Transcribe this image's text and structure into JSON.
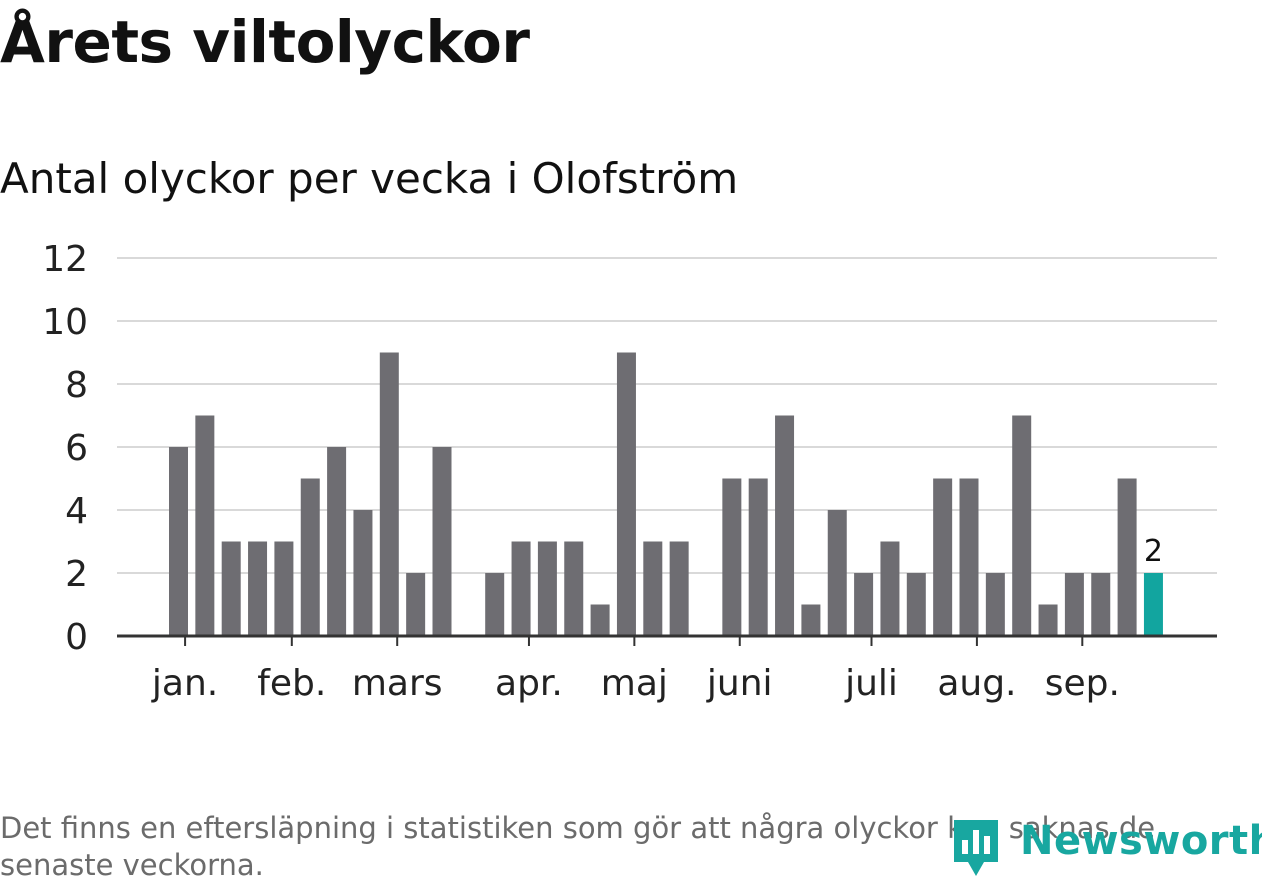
{
  "title": "Årets viltolyckor",
  "subtitle": "Antal olyckor per vecka i Olofström",
  "footnote": "Det finns en eftersläpning i statistiken som gör att några olyckor kan saknas de senaste veckorna.",
  "brand": {
    "name": "Newsworthy",
    "icon": "newsworthy-logo-icon"
  },
  "colors": {
    "bar": "#6e6d72",
    "highlight": "#12a59f",
    "grid": "#d9d9d9",
    "axis": "#333333",
    "text": "#222222"
  },
  "chart_data": {
    "type": "bar",
    "title": "Antal olyckor per vecka i Olofström",
    "xlabel": "",
    "ylabel": "",
    "ylim": [
      0,
      12
    ],
    "yticks": [
      0,
      2,
      4,
      6,
      8,
      10,
      12
    ],
    "grid": true,
    "week_slots": 40,
    "weeks": [
      {
        "week": 3,
        "value": 6
      },
      {
        "week": 4,
        "value": 7
      },
      {
        "week": 5,
        "value": 3
      },
      {
        "week": 6,
        "value": 3
      },
      {
        "week": 7,
        "value": 3
      },
      {
        "week": 8,
        "value": 5
      },
      {
        "week": 9,
        "value": 6
      },
      {
        "week": 10,
        "value": 4
      },
      {
        "week": 11,
        "value": 9
      },
      {
        "week": 12,
        "value": 2
      },
      {
        "week": 13,
        "value": 6
      },
      {
        "week": 14,
        "value": 0
      },
      {
        "week": 15,
        "value": 2
      },
      {
        "week": 16,
        "value": 3
      },
      {
        "week": 17,
        "value": 3
      },
      {
        "week": 18,
        "value": 3
      },
      {
        "week": 19,
        "value": 1
      },
      {
        "week": 20,
        "value": 9
      },
      {
        "week": 21,
        "value": 3
      },
      {
        "week": 22,
        "value": 3
      },
      {
        "week": 23,
        "value": 0
      },
      {
        "week": 24,
        "value": 5
      },
      {
        "week": 25,
        "value": 5
      },
      {
        "week": 26,
        "value": 7
      },
      {
        "week": 27,
        "value": 1
      },
      {
        "week": 28,
        "value": 4
      },
      {
        "week": 29,
        "value": 2
      },
      {
        "week": 30,
        "value": 3
      },
      {
        "week": 31,
        "value": 2
      },
      {
        "week": 32,
        "value": 5
      },
      {
        "week": 33,
        "value": 5
      },
      {
        "week": 34,
        "value": 2
      },
      {
        "week": 35,
        "value": 7
      },
      {
        "week": 36,
        "value": 1
      },
      {
        "week": 37,
        "value": 2
      },
      {
        "week": 38,
        "value": 2
      },
      {
        "week": 39,
        "value": 5
      },
      {
        "week": 40,
        "value": 2,
        "highlight": true,
        "label": "2"
      }
    ],
    "month_ticks": [
      {
        "label": "jan.",
        "week": 3.25
      },
      {
        "label": "feb.",
        "week": 7.3
      },
      {
        "label": "mars",
        "week": 11.3
      },
      {
        "label": "apr.",
        "week": 16.3
      },
      {
        "label": "maj",
        "week": 20.3
      },
      {
        "label": "juni",
        "week": 24.3
      },
      {
        "label": "juli",
        "week": 29.3
      },
      {
        "label": "aug.",
        "week": 33.3
      },
      {
        "label": "sep.",
        "week": 37.3
      }
    ]
  }
}
